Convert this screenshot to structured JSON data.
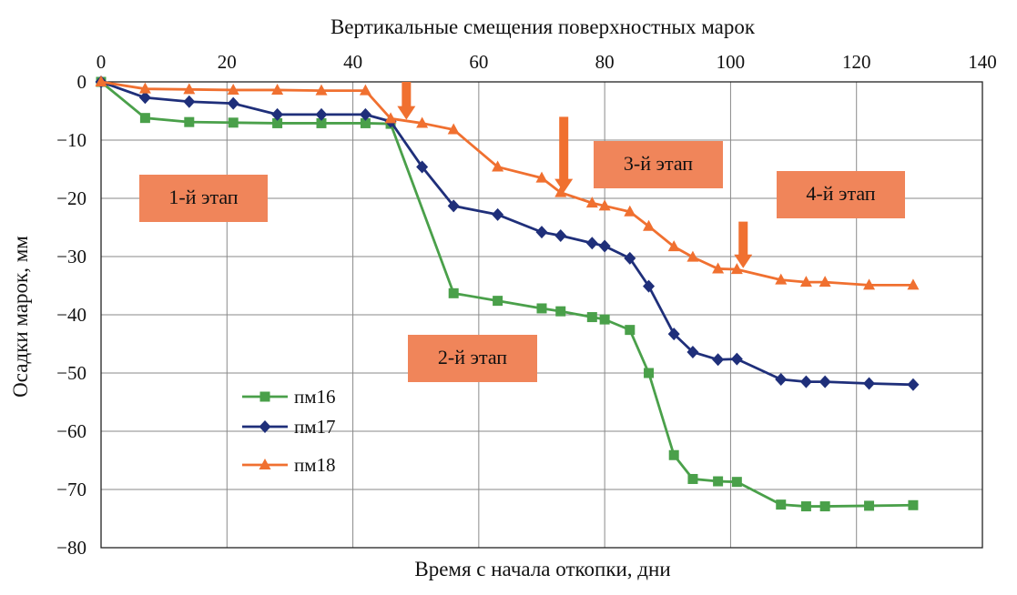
{
  "chart_data": {
    "type": "line",
    "title": "Вертикальные смещения поверхностных марок",
    "xlabel": "Время с начала откопки, дни",
    "ylabel": "Осадки марок, мм",
    "xlim": [
      0,
      140
    ],
    "ylim": [
      -80,
      0
    ],
    "xticks": [
      0,
      20,
      40,
      60,
      80,
      100,
      120,
      140
    ],
    "yticks": [
      0,
      -10,
      -20,
      -30,
      -40,
      -50,
      -60,
      -70,
      -80
    ],
    "x_axis_position": "top",
    "grid": true,
    "legend_position": "lower-left",
    "series": [
      {
        "name": "пм16",
        "color": "#4aa04a",
        "marker": "square",
        "points": [
          [
            0,
            0
          ],
          [
            7,
            -6.2
          ],
          [
            14,
            -6.9
          ],
          [
            21,
            -7
          ],
          [
            28,
            -7.1
          ],
          [
            35,
            -7.1
          ],
          [
            42,
            -7.1
          ],
          [
            46,
            -7.2
          ],
          [
            56,
            -36.3
          ],
          [
            63,
            -37.6
          ],
          [
            70,
            -38.9
          ],
          [
            73,
            -39.4
          ],
          [
            78,
            -40.4
          ],
          [
            80,
            -40.8
          ],
          [
            84,
            -42.6
          ],
          [
            87,
            -50
          ],
          [
            91,
            -64.1
          ],
          [
            94,
            -68.2
          ],
          [
            98,
            -68.6
          ],
          [
            101,
            -68.7
          ],
          [
            108,
            -72.6
          ],
          [
            112,
            -72.9
          ],
          [
            115,
            -72.9
          ],
          [
            122,
            -72.8
          ],
          [
            129,
            -72.7
          ]
        ]
      },
      {
        "name": "пм17",
        "color": "#1f2f7a",
        "marker": "diamond",
        "points": [
          [
            0,
            0
          ],
          [
            7,
            -2.7
          ],
          [
            14,
            -3.4
          ],
          [
            21,
            -3.7
          ],
          [
            28,
            -5.6
          ],
          [
            35,
            -5.6
          ],
          [
            42,
            -5.6
          ],
          [
            46,
            -6.8
          ],
          [
            51,
            -14.6
          ],
          [
            56,
            -21.3
          ],
          [
            63,
            -22.8
          ],
          [
            70,
            -25.8
          ],
          [
            73,
            -26.4
          ],
          [
            78,
            -27.7
          ],
          [
            80,
            -28.2
          ],
          [
            84,
            -30.3
          ],
          [
            87,
            -35.1
          ],
          [
            91,
            -43.3
          ],
          [
            94,
            -46.4
          ],
          [
            98,
            -47.7
          ],
          [
            101,
            -47.6
          ],
          [
            108,
            -51.1
          ],
          [
            112,
            -51.5
          ],
          [
            115,
            -51.5
          ],
          [
            122,
            -51.8
          ],
          [
            129,
            -52
          ]
        ]
      },
      {
        "name": "пм18",
        "color": "#f07030",
        "marker": "triangle",
        "points": [
          [
            0,
            0
          ],
          [
            7,
            -1.2
          ],
          [
            14,
            -1.3
          ],
          [
            21,
            -1.4
          ],
          [
            28,
            -1.4
          ],
          [
            35,
            -1.5
          ],
          [
            42,
            -1.5
          ],
          [
            46,
            -6.3
          ],
          [
            51,
            -7.1
          ],
          [
            56,
            -8.2
          ],
          [
            63,
            -14.6
          ],
          [
            70,
            -16.5
          ],
          [
            73,
            -19
          ],
          [
            78,
            -20.8
          ],
          [
            80,
            -21.3
          ],
          [
            84,
            -22.3
          ],
          [
            87,
            -24.8
          ],
          [
            91,
            -28.3
          ],
          [
            94,
            -30.1
          ],
          [
            98,
            -32.1
          ],
          [
            101,
            -32.2
          ],
          [
            108,
            -34
          ],
          [
            112,
            -34.4
          ],
          [
            115,
            -34.4
          ],
          [
            122,
            -34.9
          ],
          [
            129,
            -34.9
          ]
        ]
      }
    ],
    "stage_labels": [
      "1-й этап",
      "2-й этап",
      "3-й этап",
      "4-й этап"
    ],
    "stage_label_color": "#f0855a",
    "arrow_color": "#f07030",
    "stage_arrows": [
      {
        "x": 48.5,
        "y_from": 0,
        "y_to": -6.5
      },
      {
        "x": 73.5,
        "y_from": -6,
        "y_to": -19
      },
      {
        "x": 102,
        "y_from": -24,
        "y_to": -32
      }
    ]
  }
}
